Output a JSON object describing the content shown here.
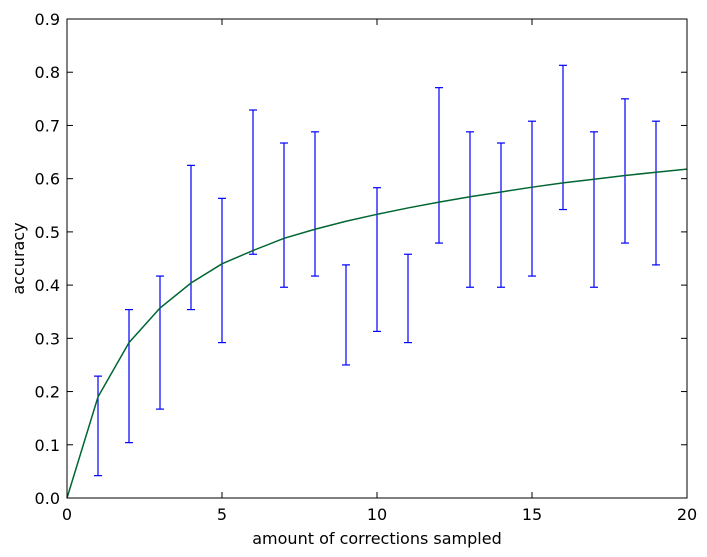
{
  "chart_data": {
    "type": "line",
    "xlabel": "amount of corrections sampled",
    "ylabel": "accuracy",
    "xlim": [
      0,
      20
    ],
    "ylim": [
      0,
      0.9
    ],
    "xticks": [
      0,
      5,
      10,
      15,
      20
    ],
    "xtick_labels": [
      "0",
      "5",
      "10",
      "15",
      "20"
    ],
    "yticks": [
      0,
      0.1,
      0.2,
      0.3,
      0.4,
      0.5,
      0.6,
      0.7,
      0.8,
      0.9
    ],
    "ytick_labels": [
      "0.0",
      "0.1",
      "0.2",
      "0.3",
      "0.4",
      "0.5",
      "0.6",
      "0.7",
      "0.8",
      "0.9"
    ],
    "grid": false,
    "legend": "none",
    "colors": {
      "errorbar": "#0000ff",
      "curve": "#006633",
      "axes": "#000000"
    },
    "series": [
      {
        "kind": "errorbar",
        "x": [
          1,
          2,
          3,
          4,
          5,
          6,
          7,
          8,
          9,
          10,
          11,
          12,
          13,
          14,
          15,
          16,
          17,
          18,
          19
        ],
        "low": [
          0.042,
          0.104,
          0.167,
          0.354,
          0.292,
          0.458,
          0.396,
          0.417,
          0.25,
          0.313,
          0.292,
          0.479,
          0.396,
          0.396,
          0.417,
          0.542,
          0.396,
          0.479,
          0.438
        ],
        "high": [
          0.229,
          0.354,
          0.417,
          0.625,
          0.563,
          0.729,
          0.667,
          0.688,
          0.438,
          0.583,
          0.458,
          0.771,
          0.688,
          0.667,
          0.708,
          0.813,
          0.688,
          0.75,
          0.708
        ]
      },
      {
        "kind": "line",
        "x": [
          0,
          1,
          2,
          3,
          4,
          5,
          6,
          7,
          8,
          9,
          10,
          11,
          12,
          13,
          14,
          15,
          16,
          17,
          18,
          19,
          20
        ],
        "values": [
          0.0,
          0.19,
          0.292,
          0.357,
          0.404,
          0.44,
          0.465,
          0.488,
          0.505,
          0.52,
          0.533,
          0.545,
          0.556,
          0.566,
          0.575,
          0.584,
          0.592,
          0.599,
          0.606,
          0.612,
          0.618
        ]
      }
    ]
  }
}
